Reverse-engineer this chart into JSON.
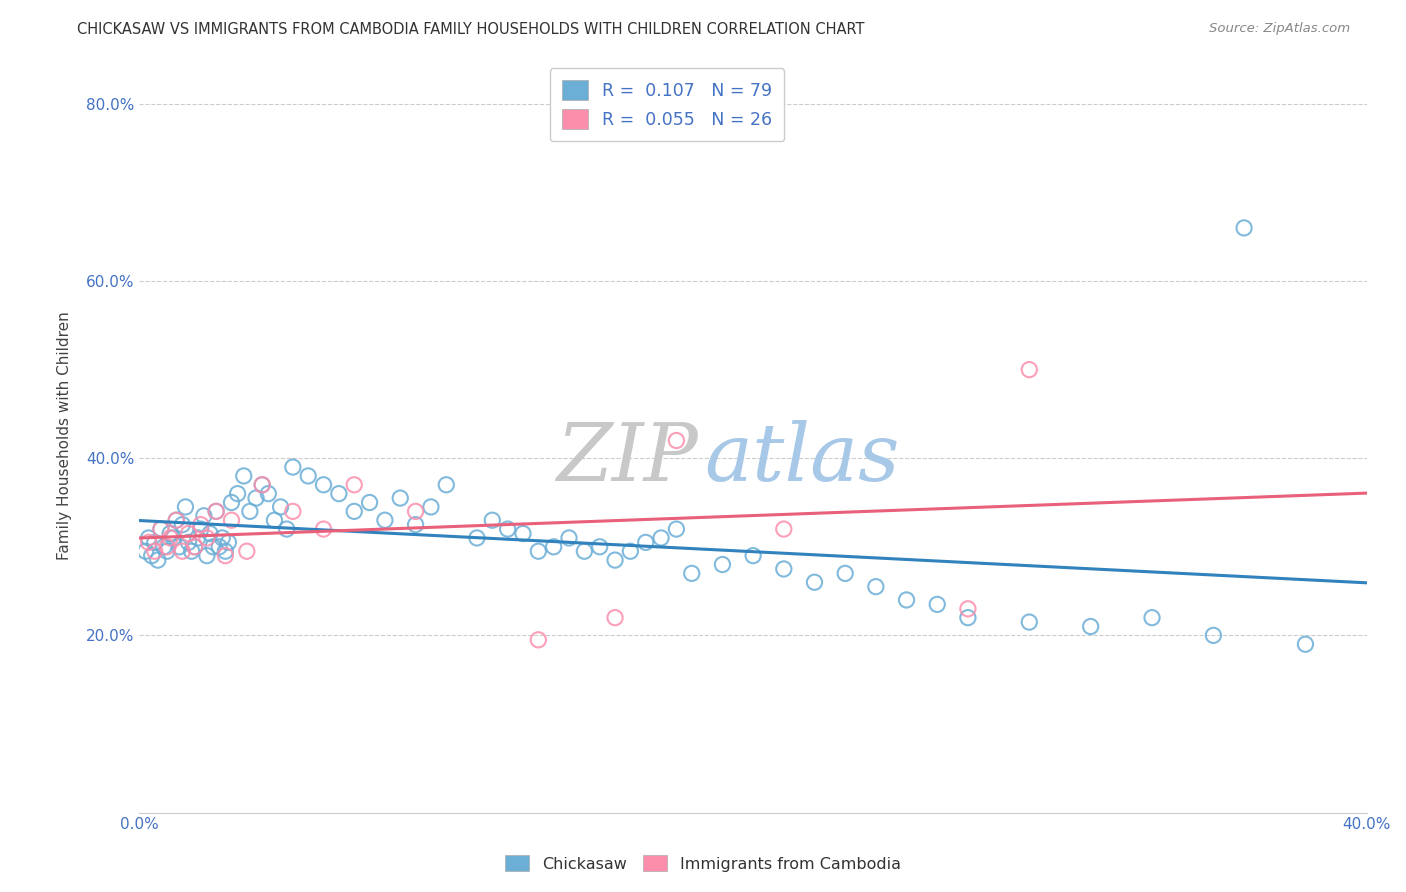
{
  "title": "CHICKASAW VS IMMIGRANTS FROM CAMBODIA FAMILY HOUSEHOLDS WITH CHILDREN CORRELATION CHART",
  "source": "Source: ZipAtlas.com",
  "ylabel": "Family Households with Children",
  "xlim": [
    0.0,
    0.4
  ],
  "ylim": [
    0.0,
    0.85
  ],
  "xticks": [
    0.0,
    0.05,
    0.1,
    0.15,
    0.2,
    0.25,
    0.3,
    0.35,
    0.4
  ],
  "yticks": [
    0.0,
    0.2,
    0.4,
    0.6,
    0.8
  ],
  "xticklabels": [
    "0.0%",
    "",
    "",
    "",
    "",
    "",
    "",
    "",
    "40.0%"
  ],
  "yticklabels": [
    "",
    "20.0%",
    "40.0%",
    "60.0%",
    "80.0%"
  ],
  "legend_r1": "R =  0.107",
  "legend_n1": "N = 79",
  "legend_r2": "R =  0.055",
  "legend_n2": "N = 26",
  "color_blue": "#6baed6",
  "color_pink": "#fc8eac",
  "color_trendline_blue": "#3182bd",
  "color_trendline_pink": "#e8607a",
  "chickasaw_x": [
    0.002,
    0.003,
    0.004,
    0.005,
    0.006,
    0.007,
    0.008,
    0.009,
    0.01,
    0.011,
    0.012,
    0.013,
    0.014,
    0.015,
    0.016,
    0.017,
    0.018,
    0.019,
    0.02,
    0.021,
    0.022,
    0.023,
    0.024,
    0.025,
    0.026,
    0.027,
    0.028,
    0.029,
    0.03,
    0.032,
    0.034,
    0.036,
    0.038,
    0.04,
    0.042,
    0.044,
    0.046,
    0.048,
    0.05,
    0.055,
    0.06,
    0.065,
    0.07,
    0.075,
    0.08,
    0.085,
    0.09,
    0.095,
    0.1,
    0.11,
    0.115,
    0.12,
    0.125,
    0.13,
    0.135,
    0.14,
    0.145,
    0.15,
    0.155,
    0.16,
    0.165,
    0.17,
    0.175,
    0.18,
    0.19,
    0.2,
    0.21,
    0.22,
    0.23,
    0.24,
    0.25,
    0.26,
    0.27,
    0.29,
    0.31,
    0.33,
    0.35,
    0.36,
    0.38
  ],
  "chickasaw_y": [
    0.295,
    0.31,
    0.29,
    0.305,
    0.285,
    0.32,
    0.3,
    0.295,
    0.315,
    0.31,
    0.33,
    0.3,
    0.325,
    0.345,
    0.305,
    0.295,
    0.3,
    0.31,
    0.32,
    0.335,
    0.29,
    0.315,
    0.3,
    0.34,
    0.3,
    0.31,
    0.295,
    0.305,
    0.35,
    0.36,
    0.38,
    0.34,
    0.355,
    0.37,
    0.36,
    0.33,
    0.345,
    0.32,
    0.39,
    0.38,
    0.37,
    0.36,
    0.34,
    0.35,
    0.33,
    0.355,
    0.325,
    0.345,
    0.37,
    0.31,
    0.33,
    0.32,
    0.315,
    0.295,
    0.3,
    0.31,
    0.295,
    0.3,
    0.285,
    0.295,
    0.305,
    0.31,
    0.32,
    0.27,
    0.28,
    0.29,
    0.275,
    0.26,
    0.27,
    0.255,
    0.24,
    0.235,
    0.22,
    0.215,
    0.21,
    0.22,
    0.2,
    0.66,
    0.19
  ],
  "cambodia_x": [
    0.003,
    0.005,
    0.007,
    0.009,
    0.01,
    0.012,
    0.014,
    0.016,
    0.018,
    0.02,
    0.022,
    0.025,
    0.028,
    0.03,
    0.035,
    0.04,
    0.05,
    0.06,
    0.07,
    0.09,
    0.13,
    0.155,
    0.175,
    0.21,
    0.27,
    0.29
  ],
  "cambodia_y": [
    0.305,
    0.295,
    0.32,
    0.3,
    0.31,
    0.33,
    0.295,
    0.315,
    0.3,
    0.325,
    0.31,
    0.34,
    0.29,
    0.33,
    0.295,
    0.37,
    0.34,
    0.32,
    0.37,
    0.34,
    0.195,
    0.22,
    0.42,
    0.32,
    0.23,
    0.5
  ]
}
